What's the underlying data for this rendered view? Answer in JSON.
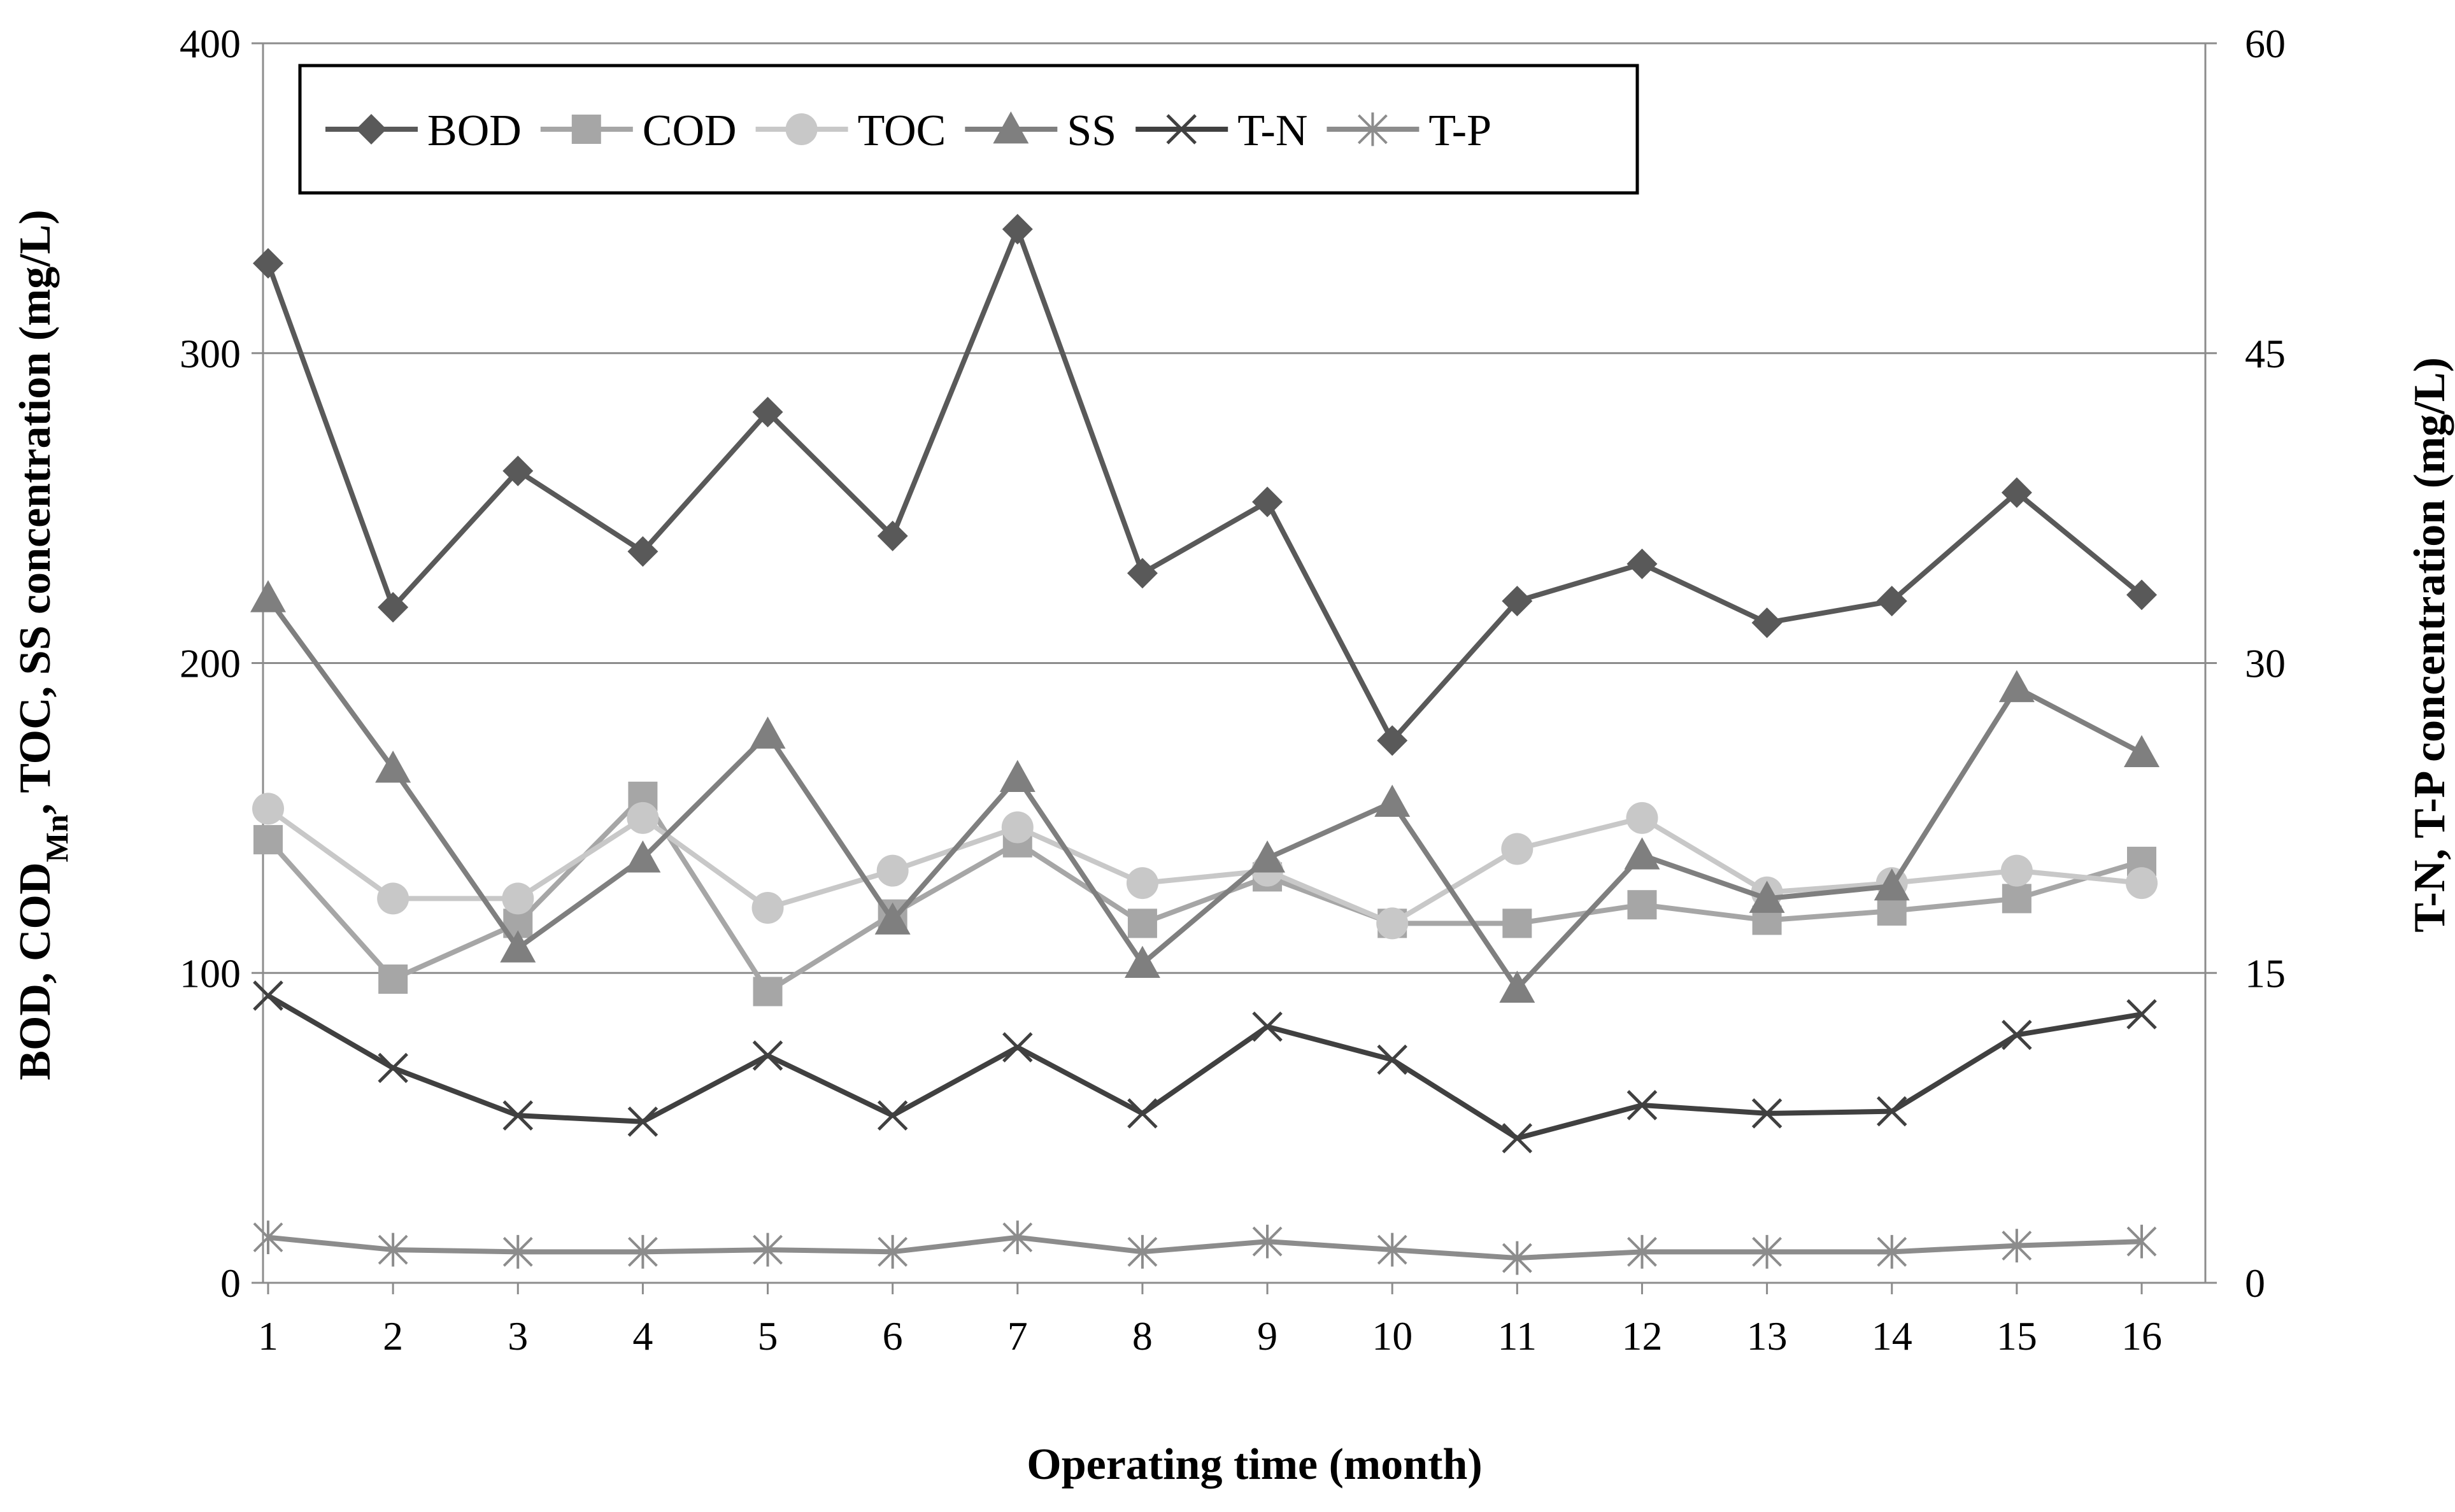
{
  "chart_data": {
    "type": "line",
    "xlabel": "Operating time (month)",
    "ylabel_left": {
      "main": "BOD, COD",
      "subscript": "Mn",
      "rest": ", TOC, SS concentration (mg/L)"
    },
    "ylabel_right": "T-N, T-P concentration (mg/L)",
    "x": [
      1,
      2,
      3,
      4,
      5,
      6,
      7,
      8,
      9,
      10,
      11,
      12,
      13,
      14,
      15,
      16
    ],
    "x_tick_labels": [
      "1",
      "2",
      "3",
      "4",
      "5",
      "6",
      "7",
      "8",
      "9",
      "10",
      "11",
      "12",
      "13",
      "14",
      "15",
      "16"
    ],
    "y_left": {
      "lim": [
        0,
        400
      ],
      "ticks": [
        0,
        100,
        200,
        300,
        400
      ],
      "tick_labels": [
        "0",
        "100",
        "200",
        "300",
        "400"
      ]
    },
    "y_right": {
      "lim": [
        0,
        60
      ],
      "ticks": [
        0,
        15,
        30,
        45,
        60
      ],
      "tick_labels": [
        "0",
        "15",
        "30",
        "45",
        "60"
      ]
    },
    "grid": "horizontal",
    "legend_position": "top",
    "series": [
      {
        "name": "BOD",
        "axis": "left",
        "marker": "diamond",
        "color": "#595959",
        "values": [
          329,
          218,
          262,
          236,
          281,
          241,
          340,
          229,
          252,
          175,
          220,
          232,
          213,
          220,
          255,
          222
        ]
      },
      {
        "name": "COD",
        "axis": "left",
        "marker": "square",
        "color": "#a6a6a6",
        "values": [
          143,
          98,
          116,
          157,
          94,
          119,
          142,
          116,
          131,
          116,
          116,
          122,
          117,
          120,
          124,
          136
        ]
      },
      {
        "name": "TOC",
        "axis": "left",
        "marker": "circle",
        "color": "#c8c8c8",
        "values": [
          153,
          124,
          124,
          150,
          121,
          133,
          147,
          129,
          133,
          116,
          140,
          150,
          126,
          129,
          133,
          129
        ]
      },
      {
        "name": "SS",
        "axis": "left",
        "marker": "triangle",
        "color": "#7f7f7f",
        "values": [
          221,
          166,
          108,
          137,
          177,
          117,
          163,
          103,
          137,
          155,
          95,
          138,
          124,
          128,
          192,
          171
        ]
      },
      {
        "name": "T-N",
        "axis": "right",
        "marker": "x",
        "color": "#404040",
        "values": [
          13.9,
          10.4,
          8.1,
          7.8,
          11.0,
          8.1,
          11.4,
          8.2,
          12.4,
          10.8,
          7.0,
          8.6,
          8.2,
          8.3,
          12.0,
          13.0
        ]
      },
      {
        "name": "T-P",
        "axis": "right",
        "marker": "star",
        "color": "#8c8c8c",
        "values": [
          2.2,
          1.6,
          1.5,
          1.5,
          1.6,
          1.5,
          2.2,
          1.5,
          2.0,
          1.6,
          1.2,
          1.5,
          1.5,
          1.5,
          1.8,
          2.0
        ]
      }
    ]
  }
}
